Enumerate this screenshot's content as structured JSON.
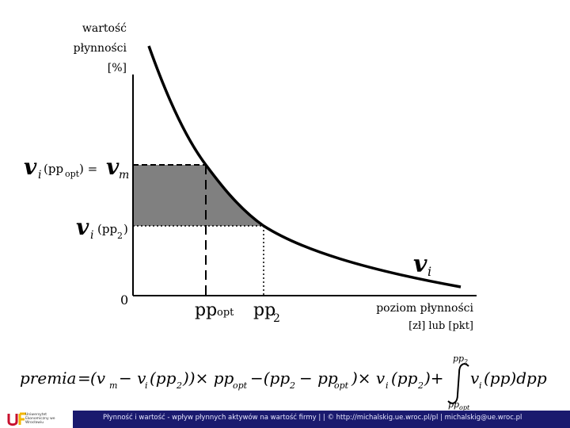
{
  "axes": {
    "y_label_line1": "wartość",
    "y_label_line2": "płynności",
    "y_label_line3": "[%]",
    "x_label_line1": "poziom płynności",
    "x_label_line2": "[zł] lub [pkt]",
    "origin": "0"
  },
  "labels": {
    "v_letter": "v",
    "sub_i": "i",
    "sub_m": "m",
    "vi_pp_opt_arg_open": "(pp",
    "vi_pp_opt_arg_sub": "opt",
    "vi_pp_opt_arg_close": ") =",
    "vi_pp2_arg_open": "(pp",
    "vi_pp2_arg_sub": "2",
    "vi_pp2_arg_close": ")",
    "pp": "pp",
    "sub_opt": "opt",
    "sub_2": "2"
  },
  "formula": {
    "premia": "premia",
    "eq": "=",
    "part1": "(v",
    "part2": "− v",
    "part3": "(pp",
    "part4": "))× pp",
    "part5": "−(pp",
    "part6": "− pp",
    "part7": ")× v",
    "part8": "(pp",
    "part9": ")+",
    "integrand": "v",
    "integrand_rest": "(pp)dpp",
    "upper": "pp",
    "upper_sub": "2",
    "lower": "pp",
    "lower_sub": "opt",
    "sub_m": "m",
    "sub_i": "i",
    "sub_2": "2",
    "sub_opt": "opt"
  },
  "footer": {
    "text": "Płynność i wartość - wpływ płynnych aktywów na wartość firmy | | © http://michalskig.ue.wroc.pl/pl | michalskig@ue.wroc.pl",
    "logo_text": "Uniwersytet Ekonomiczny we Wrocławiu"
  },
  "colors": {
    "shade": "#808080",
    "curve": "#000000",
    "footer_bg": "#1a1a6e",
    "logo_red": "#c8102e",
    "logo_yellow": "#f2b705"
  }
}
